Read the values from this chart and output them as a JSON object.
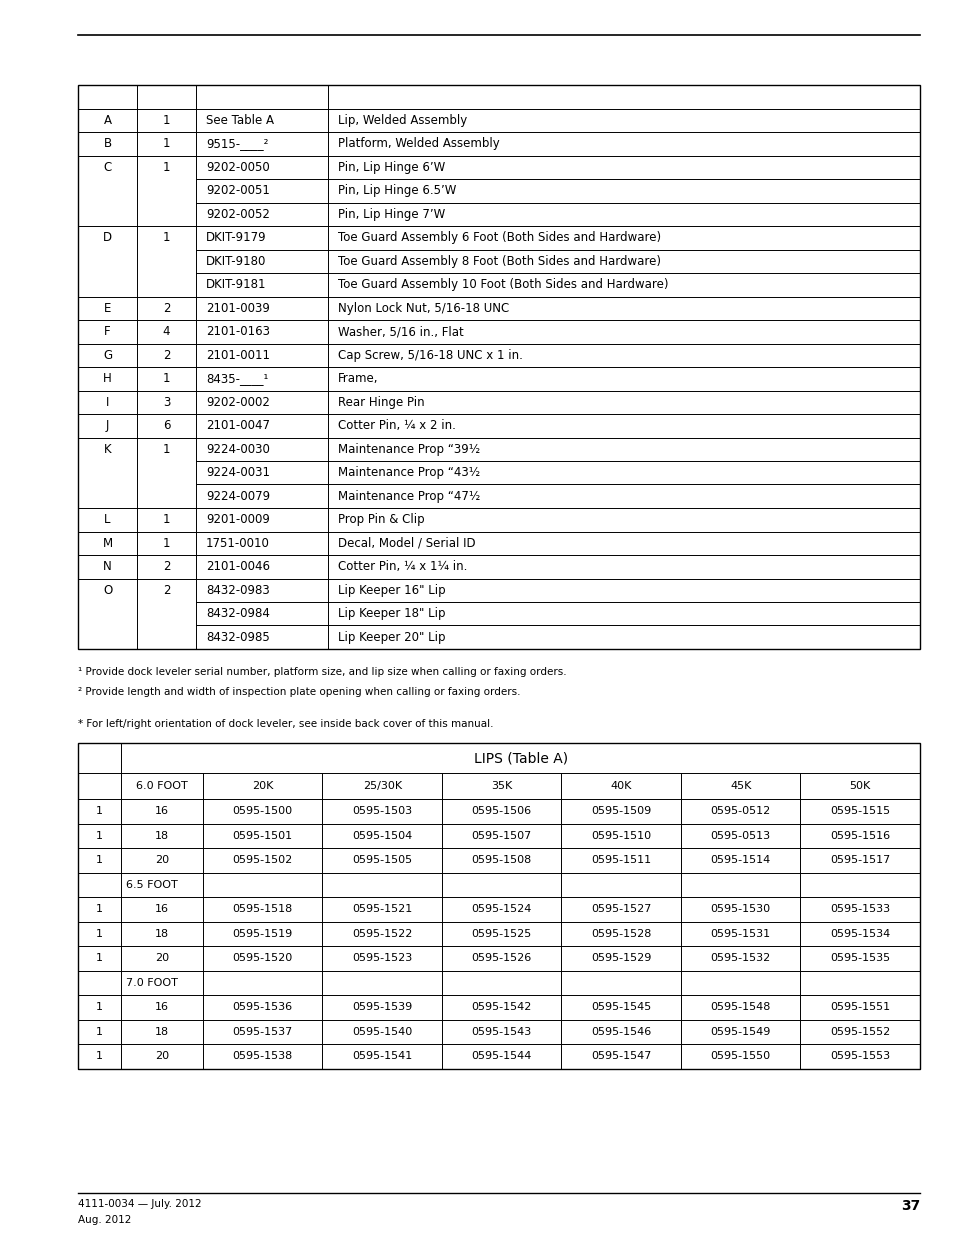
{
  "page_bg": "#ffffff",
  "footer_text1": "4111-0034 — July. 2012",
  "footer_text2": "Aug. 2012",
  "footer_page": "37",
  "table1": {
    "rows": [
      [
        "",
        "",
        "",
        ""
      ],
      [
        "A",
        "1",
        "See Table A",
        "Lip, Welded Assembly"
      ],
      [
        "B",
        "1",
        "9515-____²",
        "Platform, Welded Assembly"
      ],
      [
        "C",
        "1",
        "9202-0050",
        "Pin, Lip Hinge 6’W"
      ],
      [
        "",
        "",
        "9202-0051",
        "Pin, Lip Hinge 6.5’W"
      ],
      [
        "",
        "",
        "9202-0052",
        "Pin, Lip Hinge 7’W"
      ],
      [
        "D",
        "1",
        "DKIT-9179",
        "Toe Guard Assembly 6 Foot (Both Sides and Hardware)"
      ],
      [
        "",
        "",
        "DKIT-9180",
        "Toe Guard Assembly 8 Foot (Both Sides and Hardware)"
      ],
      [
        "",
        "",
        "DKIT-9181",
        "Toe Guard Assembly 10 Foot (Both Sides and Hardware)"
      ],
      [
        "E",
        "2",
        "2101-0039",
        "Nylon Lock Nut, 5/16-18 UNC"
      ],
      [
        "F",
        "4",
        "2101-0163",
        "Washer, 5/16 in., Flat"
      ],
      [
        "G",
        "2",
        "2101-0011",
        "Cap Screw, 5/16-18 UNC x 1 in."
      ],
      [
        "H",
        "1",
        "8435-____¹",
        "Frame,"
      ],
      [
        "I",
        "3",
        "9202-0002",
        "Rear Hinge Pin"
      ],
      [
        "J",
        "6",
        "2101-0047",
        "Cotter Pin, ¼ x 2 in."
      ],
      [
        "K",
        "1",
        "9224-0030",
        "Maintenance Prop “39½"
      ],
      [
        "",
        "",
        "9224-0031",
        "Maintenance Prop “43½"
      ],
      [
        "",
        "",
        "9224-0079",
        "Maintenance Prop “47½"
      ],
      [
        "L",
        "1",
        "9201-0009",
        "Prop Pin & Clip"
      ],
      [
        "M",
        "1",
        "1751-0010",
        "Decal, Model / Serial ID"
      ],
      [
        "N",
        "2",
        "2101-0046",
        "Cotter Pin, ¼ x 1¼ in."
      ],
      [
        "O",
        "2",
        "8432-0983",
        "Lip Keeper 16\" Lip"
      ],
      [
        "",
        "",
        "8432-0984",
        "Lip Keeper 18\" Lip"
      ],
      [
        "",
        "",
        "8432-0985",
        "Lip Keeper 20\" Lip"
      ]
    ],
    "merge_groups": {
      "C": [
        3,
        4,
        5
      ],
      "D": [
        6,
        7,
        8
      ],
      "K": [
        15,
        16,
        17
      ],
      "O": [
        21,
        22,
        23
      ]
    }
  },
  "footnotes": [
    "¹ Provide dock leveler serial number, platform size, and lip size when calling or faxing orders.",
    "² Provide length and width of inspection plate opening when calling or faxing orders.",
    "* For left/right orientation of dock leveler, see inside back cover of this manual."
  ],
  "table2": {
    "title": "LIPS (Table A)",
    "header_row": [
      "",
      "6.0 FOOT",
      "20K",
      "25/30K",
      "35K",
      "40K",
      "45K",
      "50K"
    ],
    "rows": [
      [
        "1",
        "16",
        "0595-1500",
        "0595-1503",
        "0595-1506",
        "0595-1509",
        "0595-0512",
        "0595-1515"
      ],
      [
        "1",
        "18",
        "0595-1501",
        "0595-1504",
        "0595-1507",
        "0595-1510",
        "0595-0513",
        "0595-1516"
      ],
      [
        "1",
        "20",
        "0595-1502",
        "0595-1505",
        "0595-1508",
        "0595-1511",
        "0595-1514",
        "0595-1517"
      ],
      [
        "",
        "6.5 FOOT",
        "",
        "",
        "",
        "",
        "",
        ""
      ],
      [
        "1",
        "16",
        "0595-1518",
        "0595-1521",
        "0595-1524",
        "0595-1527",
        "0595-1530",
        "0595-1533"
      ],
      [
        "1",
        "18",
        "0595-1519",
        "0595-1522",
        "0595-1525",
        "0595-1528",
        "0595-1531",
        "0595-1534"
      ],
      [
        "1",
        "20",
        "0595-1520",
        "0595-1523",
        "0595-1526",
        "0595-1529",
        "0595-1532",
        "0595-1535"
      ],
      [
        "",
        "7.0 FOOT",
        "",
        "",
        "",
        "",
        "",
        ""
      ],
      [
        "1",
        "16",
        "0595-1536",
        "0595-1539",
        "0595-1542",
        "0595-1545",
        "0595-1548",
        "0595-1551"
      ],
      [
        "1",
        "18",
        "0595-1537",
        "0595-1540",
        "0595-1543",
        "0595-1546",
        "0595-1549",
        "0595-1552"
      ],
      [
        "1",
        "20",
        "0595-1538",
        "0595-1541",
        "0595-1544",
        "0595-1547",
        "0595-1550",
        "0595-1553"
      ]
    ]
  }
}
